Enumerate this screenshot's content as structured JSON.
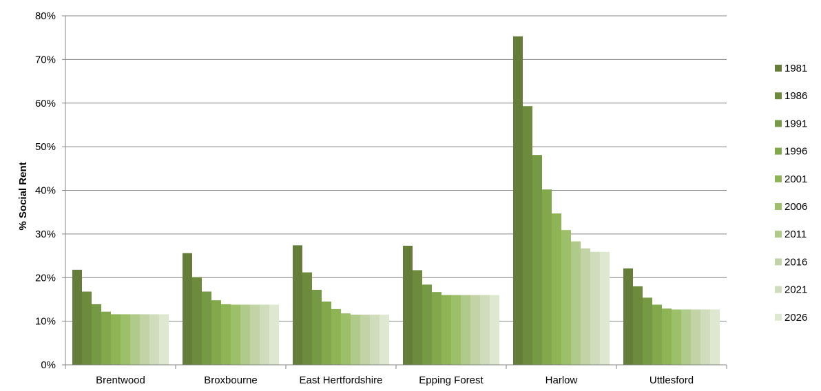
{
  "chart_data": {
    "type": "bar",
    "title": "",
    "xlabel": "",
    "ylabel": "% Social Rent",
    "ylim": [
      0,
      80
    ],
    "y_ticks": [
      "0%",
      "10%",
      "20%",
      "30%",
      "40%",
      "50%",
      "60%",
      "70%",
      "80%"
    ],
    "grid": true,
    "legend_position": "right",
    "categories": [
      "Brentwood",
      "Broxbourne",
      "East Hertfordshire",
      "Epping Forest",
      "Harlow",
      "Uttlesford"
    ],
    "series": [
      {
        "name": "1981",
        "color": "#647d38",
        "values": [
          21.8,
          25.6,
          27.4,
          27.3,
          75.3,
          22.1
        ]
      },
      {
        "name": "1986",
        "color": "#6d8a3d",
        "values": [
          16.8,
          20.1,
          21.2,
          21.7,
          59.3,
          18.0
        ]
      },
      {
        "name": "1991",
        "color": "#769a43",
        "values": [
          13.9,
          16.8,
          17.2,
          18.4,
          48.1,
          15.4
        ]
      },
      {
        "name": "1996",
        "color": "#82a84c",
        "values": [
          12.2,
          14.8,
          14.5,
          16.7,
          40.2,
          13.8
        ]
      },
      {
        "name": "2001",
        "color": "#8fb456",
        "values": [
          11.6,
          13.9,
          12.8,
          16.0,
          34.7,
          12.9
        ]
      },
      {
        "name": "2006",
        "color": "#9dbf6a",
        "values": [
          11.6,
          13.8,
          11.8,
          16.0,
          30.9,
          12.7
        ]
      },
      {
        "name": "2011",
        "color": "#b0ca8a",
        "values": [
          11.6,
          13.8,
          11.5,
          16.0,
          28.3,
          12.7
        ]
      },
      {
        "name": "2016",
        "color": "#c2d4a6",
        "values": [
          11.6,
          13.8,
          11.5,
          16.0,
          26.7,
          12.7
        ]
      },
      {
        "name": "2021",
        "color": "#d0ddbd",
        "values": [
          11.6,
          13.8,
          11.5,
          16.0,
          25.9,
          12.7
        ]
      },
      {
        "name": "2026",
        "color": "#dee7cf",
        "values": [
          11.6,
          13.8,
          11.5,
          16.0,
          25.9,
          12.7
        ]
      }
    ]
  }
}
